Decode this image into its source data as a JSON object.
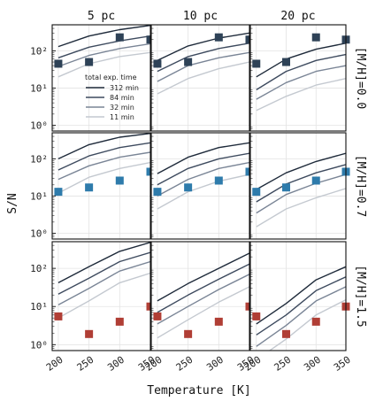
{
  "chart_data": {
    "type": "line",
    "xlabel": "Temperature [K]",
    "ylabel": "S/N",
    "x_ticks": [
      "200",
      "250",
      "300",
      "350"
    ],
    "y_ticks": [
      {
        "value": 1,
        "label": "10⁰"
      },
      {
        "value": 10,
        "label": "10¹"
      },
      {
        "value": 100,
        "label": "10²"
      }
    ],
    "y_scale": "log",
    "xlim": [
      190,
      350
    ],
    "ylim": [
      0.7,
      500
    ],
    "grid": true,
    "columns": [
      "5 pc",
      "10 pc",
      "20 pc"
    ],
    "rows": [
      "[M/H]=0.0",
      "[M/H]=0.7",
      "[M/H]=1.5"
    ],
    "legend": {
      "title": "total exp. time",
      "placement": "panel-top-left-0-0",
      "entries": [
        {
          "name": "312 min",
          "color": "#1e2a3a"
        },
        {
          "name": "84 min",
          "color": "#3d4a5e"
        },
        {
          "name": "32 min",
          "color": "#7a8596"
        },
        {
          "name": "11 min",
          "color": "#c4c9d0"
        }
      ]
    },
    "marker_colors": [
      "#2e4257",
      "#2e7bab",
      "#b03e35"
    ],
    "x": [
      200,
      250,
      300,
      350
    ],
    "panels": [
      {
        "row": "[M/H]=0.0",
        "column": "5 pc",
        "series": [
          {
            "name": "312 min",
            "values": [
              130,
              250,
              370,
              480
            ]
          },
          {
            "name": "84 min",
            "values": [
              65,
              125,
              185,
              250
            ]
          },
          {
            "name": "32 min",
            "values": [
              38,
              75,
              115,
              155
            ]
          },
          {
            "name": "11 min",
            "values": [
              20,
              45,
              70,
              90
            ]
          }
        ],
        "markers": [
          {
            "x": 200,
            "y": 45
          },
          {
            "x": 250,
            "y": 50
          },
          {
            "x": 300,
            "y": 230
          },
          {
            "x": 350,
            "y": 200
          }
        ]
      },
      {
        "row": "[M/H]=0.0",
        "column": "10 pc",
        "series": [
          {
            "name": "312 min",
            "values": [
              55,
              135,
              220,
              300
            ]
          },
          {
            "name": "84 min",
            "values": [
              28,
              70,
              115,
              160
            ]
          },
          {
            "name": "32 min",
            "values": [
              15,
              40,
              65,
              90
            ]
          },
          {
            "name": "11 min",
            "values": [
              7,
              18,
              33,
              50
            ]
          }
        ],
        "markers": [
          {
            "x": 200,
            "y": 45
          },
          {
            "x": 250,
            "y": 50
          },
          {
            "x": 300,
            "y": 230
          },
          {
            "x": 350,
            "y": 200
          }
        ]
      },
      {
        "row": "[M/H]=0.0",
        "column": "20 pc",
        "series": [
          {
            "name": "312 min",
            "values": [
              20,
              60,
              110,
              160
            ]
          },
          {
            "name": "84 min",
            "values": [
              9,
              28,
              55,
              80
            ]
          },
          {
            "name": "32 min",
            "values": [
              5,
              14,
              28,
              40
            ]
          },
          {
            "name": "11 min",
            "values": [
              2.5,
              6,
              12,
              18
            ]
          }
        ],
        "markers": [
          {
            "x": 200,
            "y": 45
          },
          {
            "x": 250,
            "y": 50
          },
          {
            "x": 300,
            "y": 230
          },
          {
            "x": 350,
            "y": 200
          }
        ]
      },
      {
        "row": "[M/H]=0.7",
        "column": "5 pc",
        "series": [
          {
            "name": "312 min",
            "values": [
              100,
              240,
              380,
              480
            ]
          },
          {
            "name": "84 min",
            "values": [
              50,
              120,
              200,
              270
            ]
          },
          {
            "name": "32 min",
            "values": [
              28,
              65,
              110,
              150
            ]
          },
          {
            "name": "11 min",
            "values": [
              12,
              32,
              55,
              80
            ]
          }
        ],
        "markers": [
          {
            "x": 200,
            "y": 13
          },
          {
            "x": 250,
            "y": 17
          },
          {
            "x": 300,
            "y": 26
          },
          {
            "x": 350,
            "y": 45
          }
        ]
      },
      {
        "row": "[M/H]=0.7",
        "column": "10 pc",
        "series": [
          {
            "name": "312 min",
            "values": [
              40,
              110,
              200,
              270
            ]
          },
          {
            "name": "84 min",
            "values": [
              20,
              55,
              100,
              140
            ]
          },
          {
            "name": "32 min",
            "values": [
              10,
              28,
              55,
              80
            ]
          },
          {
            "name": "11 min",
            "values": [
              4.5,
              13,
              25,
              38
            ]
          }
        ],
        "markers": [
          {
            "x": 200,
            "y": 13
          },
          {
            "x": 250,
            "y": 17
          },
          {
            "x": 300,
            "y": 26
          },
          {
            "x": 350,
            "y": 45
          }
        ]
      },
      {
        "row": "[M/H]=0.7",
        "column": "20 pc",
        "series": [
          {
            "name": "312 min",
            "values": [
              15,
              42,
              85,
              140
            ]
          },
          {
            "name": "84 min",
            "values": [
              7,
              21,
              42,
              70
            ]
          },
          {
            "name": "32 min",
            "values": [
              3.5,
              11,
              22,
              38
            ]
          },
          {
            "name": "11 min",
            "values": [
              1.5,
              4.5,
              9,
              16
            ]
          }
        ],
        "markers": [
          {
            "x": 200,
            "y": 13
          },
          {
            "x": 250,
            "y": 17
          },
          {
            "x": 300,
            "y": 26
          },
          {
            "x": 350,
            "y": 45
          }
        ]
      },
      {
        "row": "[M/H]=1.5",
        "column": "5 pc",
        "series": [
          {
            "name": "312 min",
            "values": [
              42,
              110,
              280,
              480
            ]
          },
          {
            "name": "84 min",
            "values": [
              21,
              55,
              150,
              260
            ]
          },
          {
            "name": "32 min",
            "values": [
              11,
              30,
              85,
              150
            ]
          },
          {
            "name": "11 min",
            "values": [
              5,
              14,
              42,
              75
            ]
          }
        ],
        "markers": [
          {
            "x": 200,
            "y": 5.5
          },
          {
            "x": 250,
            "y": 1.9
          },
          {
            "x": 300,
            "y": 4
          },
          {
            "x": 350,
            "y": 10
          }
        ]
      },
      {
        "row": "[M/H]=1.5",
        "column": "10 pc",
        "series": [
          {
            "name": "312 min",
            "values": [
              14,
              40,
              100,
              250
            ]
          },
          {
            "name": "84 min",
            "values": [
              7,
              20,
              52,
              130
            ]
          },
          {
            "name": "32 min",
            "values": [
              3.5,
              10,
              28,
              70
            ]
          },
          {
            "name": "11 min",
            "values": [
              1.5,
              4.5,
              13,
              33
            ]
          }
        ],
        "markers": [
          {
            "x": 200,
            "y": 5.5
          },
          {
            "x": 250,
            "y": 1.9
          },
          {
            "x": 300,
            "y": 4
          },
          {
            "x": 350,
            "y": 10
          }
        ]
      },
      {
        "row": "[M/H]=1.5",
        "column": "20 pc",
        "series": [
          {
            "name": "312 min",
            "values": [
              3.5,
              12,
              50,
              110
            ]
          },
          {
            "name": "84 min",
            "values": [
              1.8,
              6,
              26,
              60
            ]
          },
          {
            "name": "32 min",
            "values": [
              0.9,
              3.2,
              14,
              33
            ]
          },
          {
            "name": "11 min",
            "values": [
              0.4,
              1.4,
              6,
              15
            ]
          }
        ],
        "markers": [
          {
            "x": 200,
            "y": 5.5
          },
          {
            "x": 250,
            "y": 1.9
          },
          {
            "x": 300,
            "y": 4
          },
          {
            "x": 350,
            "y": 10
          }
        ]
      }
    ]
  }
}
